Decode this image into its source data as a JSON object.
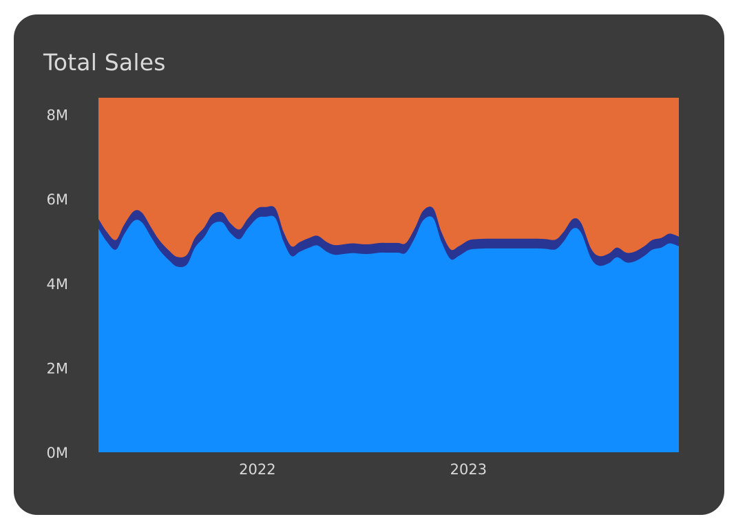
{
  "card": {
    "title": "Total Sales"
  },
  "chart_data": {
    "type": "area",
    "stacked": true,
    "title": "Total Sales",
    "xlabel": "",
    "ylabel": "",
    "x_axis": {
      "type": "date",
      "start": "2021-04-01",
      "end": "2023-12-31",
      "ticks": [
        {
          "label": "2022",
          "date": "2022-01-01"
        },
        {
          "label": "2023",
          "date": "2023-01-01"
        }
      ]
    },
    "y_axis": {
      "min": 0,
      "max": 8400000,
      "ticks": [
        {
          "label": "0M",
          "value": 0
        },
        {
          "label": "2M",
          "value": 2000000
        },
        {
          "label": "4M",
          "value": 4000000
        },
        {
          "label": "6M",
          "value": 6000000
        },
        {
          "label": "8M",
          "value": 8000000
        }
      ]
    },
    "grid": false,
    "legend": "none",
    "x": [
      "2021-04-01",
      "2021-04-15",
      "2021-05-01",
      "2021-05-15",
      "2021-06-01",
      "2021-06-15",
      "2021-07-01",
      "2021-07-15",
      "2021-08-01",
      "2021-08-15",
      "2021-09-01",
      "2021-09-15",
      "2021-10-01",
      "2021-10-15",
      "2021-11-01",
      "2021-11-15",
      "2021-12-01",
      "2021-12-15",
      "2022-01-01",
      "2022-01-15",
      "2022-02-01",
      "2022-02-15",
      "2022-03-01",
      "2022-03-15",
      "2022-04-01",
      "2022-04-15",
      "2022-05-01",
      "2022-05-15",
      "2022-06-01",
      "2022-06-15",
      "2022-07-01",
      "2022-07-15",
      "2022-08-01",
      "2022-08-15",
      "2022-09-01",
      "2022-09-15",
      "2022-10-01",
      "2022-10-15",
      "2022-11-01",
      "2022-11-15",
      "2022-12-01",
      "2022-12-15",
      "2023-01-01",
      "2023-01-15",
      "2023-02-01",
      "2023-02-15",
      "2023-03-01",
      "2023-03-15",
      "2023-04-01",
      "2023-04-15",
      "2023-05-01",
      "2023-05-15",
      "2023-06-01",
      "2023-06-15",
      "2023-07-01",
      "2023-07-15",
      "2023-08-01",
      "2023-08-15",
      "2023-09-01",
      "2023-09-15",
      "2023-10-01",
      "2023-10-15",
      "2023-11-01",
      "2023-11-15",
      "2023-12-01",
      "2023-12-15",
      "2023-12-31"
    ],
    "series": [
      {
        "color": "#118dff",
        "values": [
          5300000,
          5000000,
          4800000,
          5150000,
          5480000,
          5450000,
          5100000,
          4800000,
          4550000,
          4400000,
          4450000,
          4850000,
          5100000,
          5400000,
          5450000,
          5200000,
          5050000,
          5300000,
          5550000,
          5580000,
          5550000,
          5000000,
          4650000,
          4750000,
          4850000,
          4900000,
          4750000,
          4680000,
          4700000,
          4720000,
          4700000,
          4700000,
          4730000,
          4730000,
          4730000,
          4730000,
          5100000,
          5500000,
          5550000,
          5000000,
          4580000,
          4650000,
          4790000,
          4820000,
          4830000,
          4830000,
          4830000,
          4830000,
          4830000,
          4830000,
          4830000,
          4820000,
          4810000,
          5000000,
          5300000,
          5200000,
          4600000,
          4420000,
          4480000,
          4620000,
          4500000,
          4520000,
          4650000,
          4800000,
          4850000,
          4950000,
          4880000
        ]
      },
      {
        "color": "#283593",
        "values": [
          230000,
          230000,
          230000,
          230000,
          230000,
          230000,
          230000,
          230000,
          230000,
          230000,
          230000,
          230000,
          230000,
          230000,
          230000,
          230000,
          230000,
          230000,
          230000,
          230000,
          230000,
          230000,
          230000,
          230000,
          230000,
          230000,
          230000,
          230000,
          230000,
          230000,
          230000,
          230000,
          230000,
          230000,
          230000,
          230000,
          230000,
          230000,
          230000,
          230000,
          230000,
          230000,
          230000,
          230000,
          230000,
          230000,
          230000,
          230000,
          230000,
          230000,
          230000,
          230000,
          230000,
          230000,
          230000,
          230000,
          230000,
          230000,
          230000,
          230000,
          230000,
          230000,
          230000,
          230000,
          230000,
          230000,
          230000
        ]
      },
      {
        "color": "#e66c37",
        "total": 8400000
      }
    ]
  }
}
